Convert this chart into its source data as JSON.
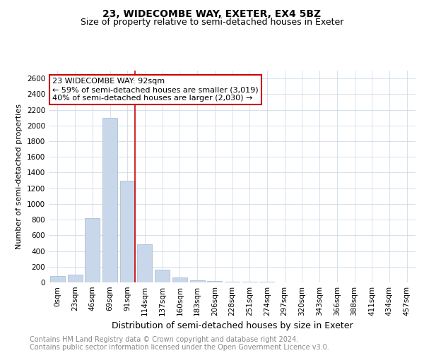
{
  "title": "23, WIDECOMBE WAY, EXETER, EX4 5BZ",
  "subtitle": "Size of property relative to semi-detached houses in Exeter",
  "xlabel": "Distribution of semi-detached houses by size in Exeter",
  "ylabel": "Number of semi-detached properties",
  "categories": [
    "0sqm",
    "23sqm",
    "46sqm",
    "69sqm",
    "91sqm",
    "114sqm",
    "137sqm",
    "160sqm",
    "183sqm",
    "206sqm",
    "228sqm",
    "251sqm",
    "274sqm",
    "297sqm",
    "320sqm",
    "343sqm",
    "366sqm",
    "388sqm",
    "411sqm",
    "434sqm",
    "457sqm"
  ],
  "values": [
    80,
    100,
    820,
    2100,
    1300,
    490,
    160,
    60,
    30,
    15,
    10,
    6,
    5,
    3,
    2,
    1,
    1,
    1,
    1,
    0,
    0
  ],
  "highlight_line_index": 4,
  "bar_color": "#c8d8ea",
  "bar_edgecolor": "#a0b8d0",
  "highlight_line_color": "#cc0000",
  "annotation_text": "23 WIDECOMBE WAY: 92sqm\n← 59% of semi-detached houses are smaller (3,019)\n40% of semi-detached houses are larger (2,030) →",
  "annotation_box_facecolor": "#ffffff",
  "annotation_box_edgecolor": "#cc0000",
  "ylim": [
    0,
    2700
  ],
  "yticks": [
    0,
    200,
    400,
    600,
    800,
    1000,
    1200,
    1400,
    1600,
    1800,
    2000,
    2200,
    2400,
    2600
  ],
  "footer_line1": "Contains HM Land Registry data © Crown copyright and database right 2024.",
  "footer_line2": "Contains public sector information licensed under the Open Government Licence v3.0.",
  "title_fontsize": 10,
  "subtitle_fontsize": 9,
  "xlabel_fontsize": 9,
  "ylabel_fontsize": 8,
  "tick_fontsize": 7.5,
  "annotation_fontsize": 8,
  "footer_fontsize": 7,
  "background_color": "#ffffff",
  "grid_color": "#d0dce8"
}
